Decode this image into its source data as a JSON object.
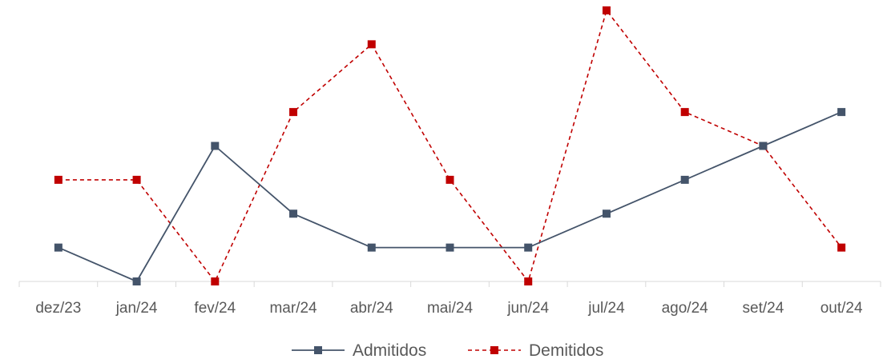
{
  "chart_data": {
    "type": "line",
    "categories": [
      "dez/23",
      "jan/24",
      "fev/24",
      "mar/24",
      "abr/24",
      "mai/24",
      "jun/24",
      "jul/24",
      "ago/24",
      "set/24",
      "out/24"
    ],
    "ylim": [
      0,
      8
    ],
    "grid": false,
    "legend_position": "bottom",
    "series": [
      {
        "name": "Admitidos",
        "values": [
          1,
          0,
          4,
          2,
          1,
          1,
          1,
          2,
          3,
          4,
          5
        ],
        "color": "#44546a",
        "line_style": "solid",
        "marker": "square"
      },
      {
        "name": "Demitidos",
        "values": [
          3,
          3,
          0,
          5,
          7,
          3,
          0,
          8,
          5,
          4,
          1
        ],
        "color": "#c00000",
        "line_style": "dashed",
        "marker": "square"
      }
    ]
  }
}
